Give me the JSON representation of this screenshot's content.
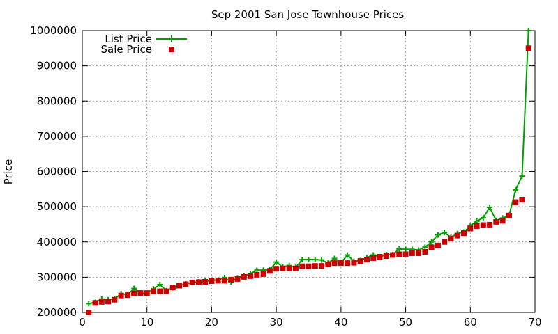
{
  "chart_data": {
    "type": "line",
    "title": "Sep 2001 San Jose Townhouse Prices",
    "xlabel": "",
    "ylabel": "Price",
    "xlim": [
      0,
      70
    ],
    "ylim": [
      200000,
      1000000
    ],
    "xticks": [
      "0",
      "10",
      "20",
      "30",
      "40",
      "50",
      "60",
      "70"
    ],
    "yticks": [
      "200000",
      "300000",
      "400000",
      "500000",
      "600000",
      "700000",
      "800000",
      "900000",
      "1000000"
    ],
    "grid": true,
    "legend_position": "top-left",
    "x": [
      1,
      2,
      3,
      4,
      5,
      6,
      7,
      8,
      9,
      10,
      11,
      12,
      13,
      14,
      15,
      16,
      17,
      18,
      19,
      20,
      21,
      22,
      23,
      24,
      25,
      26,
      27,
      28,
      29,
      30,
      31,
      32,
      33,
      34,
      35,
      36,
      37,
      38,
      39,
      40,
      41,
      42,
      43,
      44,
      45,
      46,
      47,
      48,
      49,
      50,
      51,
      52,
      53,
      54,
      55,
      56,
      57,
      58,
      59,
      60,
      61,
      62,
      63,
      64,
      65,
      66,
      67,
      68,
      69
    ],
    "series": [
      {
        "name": "List Price",
        "style": "line-plus",
        "color": "#00a000",
        "values": [
          225000,
          229000,
          238000,
          236000,
          239000,
          253000,
          250000,
          268000,
          255000,
          254000,
          267000,
          279000,
          262000,
          270000,
          276000,
          281000,
          285000,
          287000,
          289000,
          291000,
          292000,
          299000,
          287000,
          298000,
          304000,
          310000,
          320000,
          320000,
          321000,
          343000,
          329000,
          333000,
          328000,
          350000,
          350000,
          350000,
          349000,
          340000,
          353000,
          341000,
          363000,
          345000,
          347000,
          356000,
          363000,
          358000,
          364000,
          364000,
          380000,
          379000,
          379000,
          377000,
          385000,
          400000,
          420000,
          427000,
          413000,
          424000,
          428000,
          446000,
          459000,
          469000,
          498000,
          461000,
          468000,
          475000,
          548000,
          587000,
          1000000
        ]
      },
      {
        "name": "Sale Price",
        "style": "square",
        "color": "#cc0000",
        "values": [
          200000,
          227000,
          230000,
          231000,
          236000,
          248000,
          249000,
          254000,
          255000,
          255000,
          260000,
          260000,
          260000,
          271000,
          276000,
          280000,
          285000,
          286000,
          287000,
          289000,
          290000,
          290000,
          293000,
          295000,
          301000,
          303000,
          307000,
          309000,
          318000,
          324000,
          325000,
          325000,
          325000,
          331000,
          331000,
          332000,
          332000,
          336000,
          340000,
          340000,
          340000,
          341000,
          346000,
          350000,
          354000,
          358000,
          360000,
          363000,
          365000,
          365000,
          368000,
          368000,
          372000,
          385000,
          390000,
          400000,
          410000,
          418000,
          425000,
          438000,
          445000,
          448000,
          449000,
          457000,
          460000,
          475000,
          513000,
          520000,
          950000
        ]
      }
    ]
  }
}
